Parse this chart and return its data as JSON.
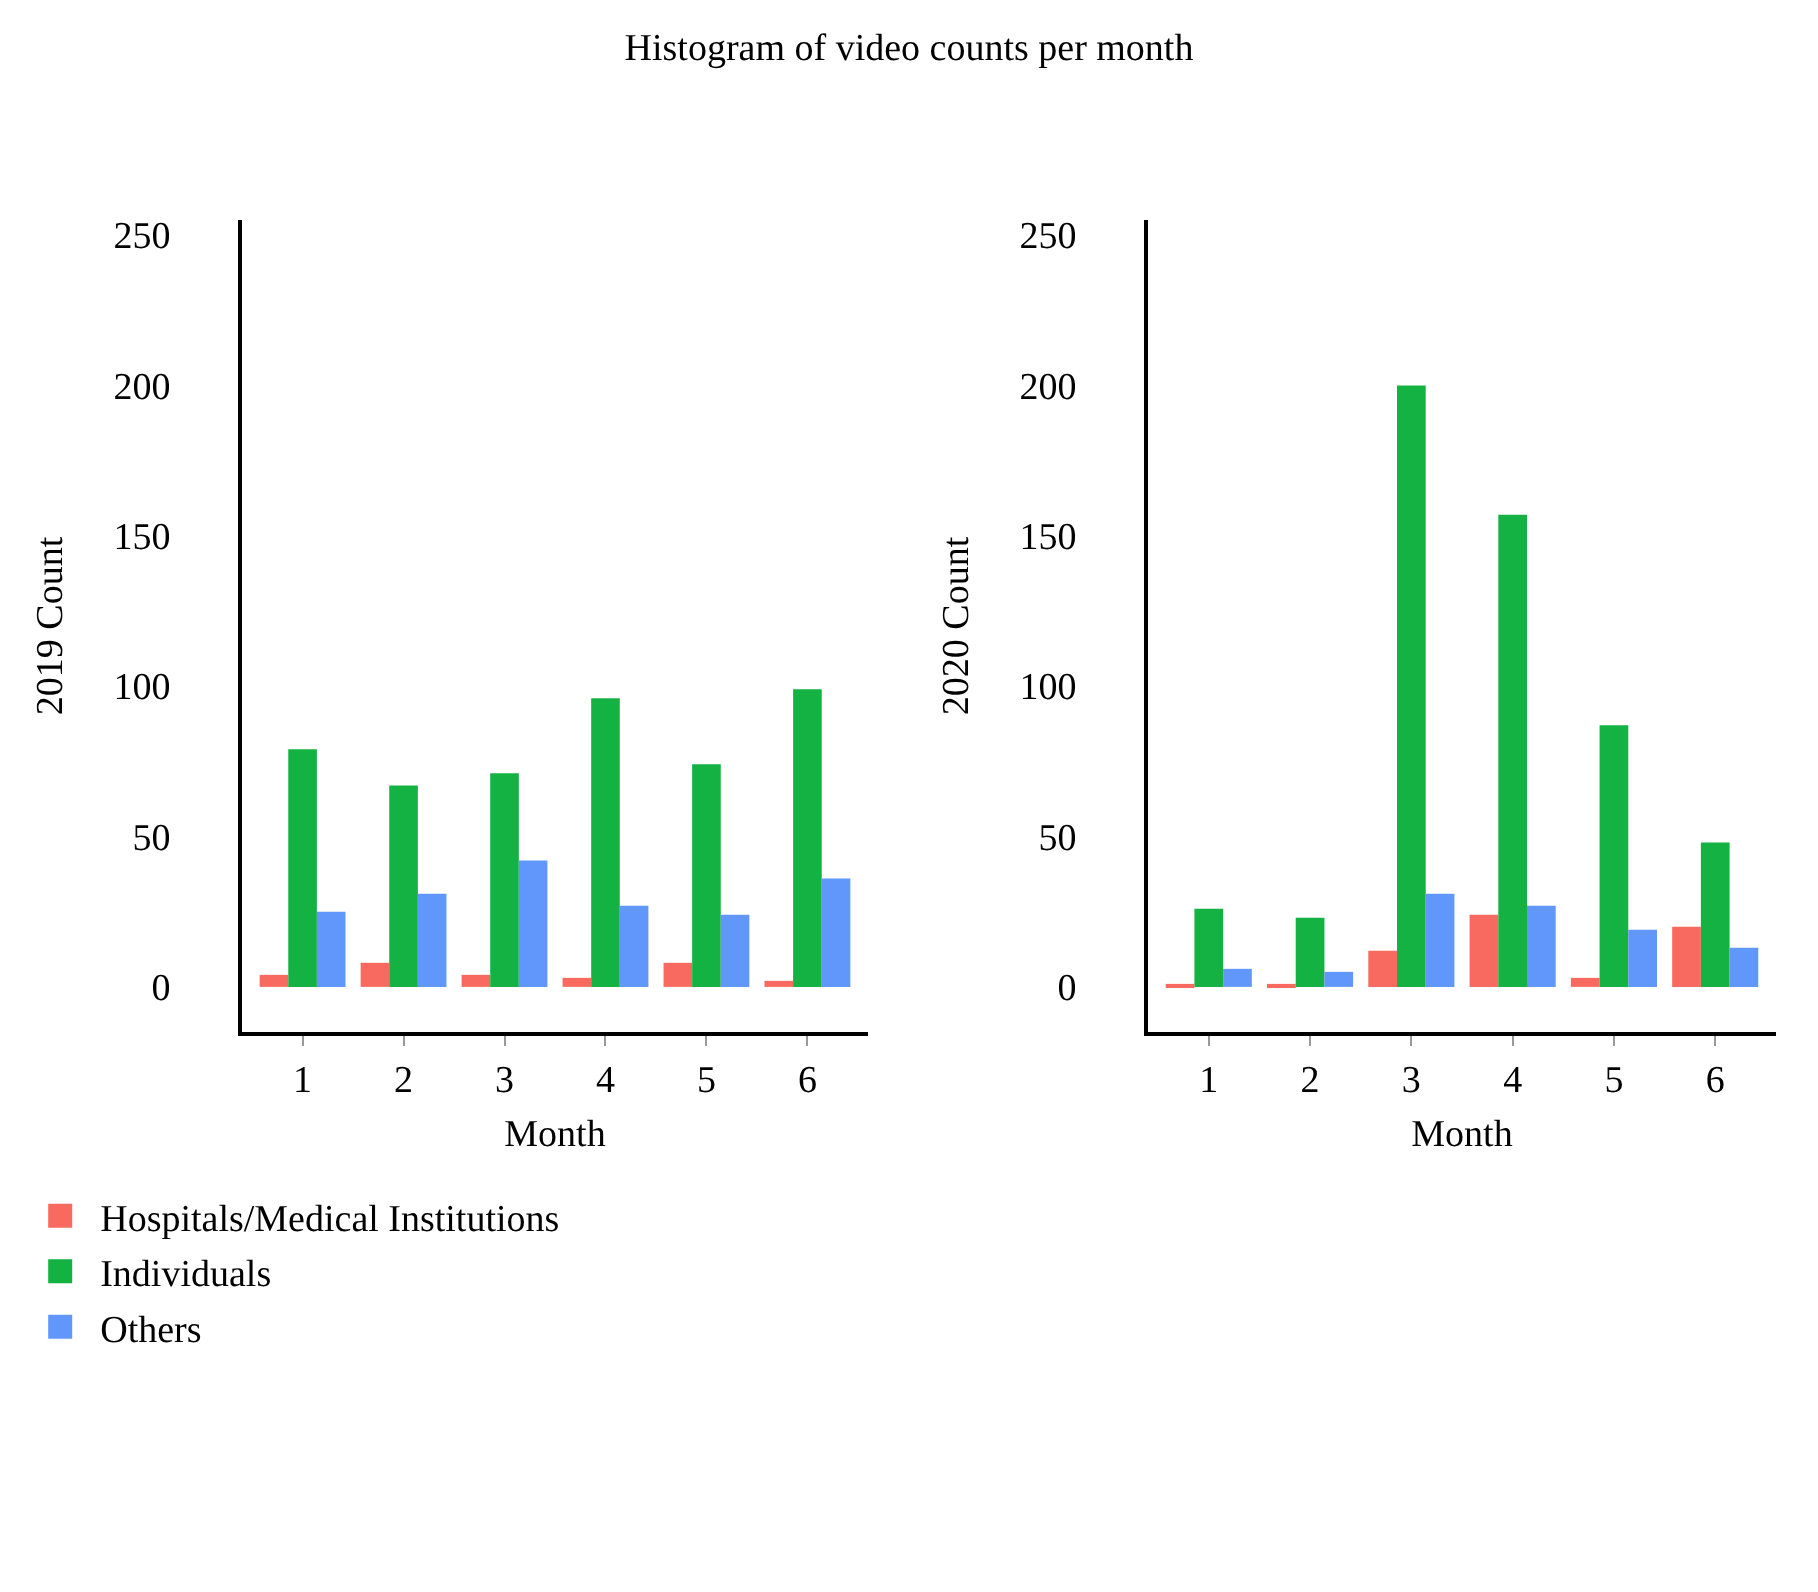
{
  "chart_data": [
    {
      "type": "bar",
      "title": "Histogram of video counts per month",
      "xlabel": "Month",
      "ylabel": "2019 Count",
      "categories": [
        "1",
        "2",
        "3",
        "4",
        "5",
        "6"
      ],
      "ylim": [
        -15,
        255
      ],
      "yticks": [
        0,
        50,
        100,
        150,
        200,
        250
      ],
      "grid": false,
      "legend": "bottom left",
      "series": [
        {
          "name": "Hospitals/Medical Institutions",
          "color": "#f8695f",
          "values": [
            4,
            8,
            4,
            3,
            8,
            2
          ]
        },
        {
          "name": "Individuals",
          "color": "#14b143",
          "values": [
            79,
            67,
            71,
            96,
            74,
            99
          ]
        },
        {
          "name": "Others",
          "color": "#6196fb",
          "values": [
            25,
            31,
            42,
            27,
            24,
            36
          ]
        }
      ]
    },
    {
      "type": "bar",
      "xlabel": "Month",
      "ylabel": "2020 Count",
      "categories": [
        "1",
        "2",
        "3",
        "4",
        "5",
        "6"
      ],
      "ylim": [
        -15,
        255
      ],
      "yticks": [
        0,
        50,
        100,
        150,
        200,
        250
      ],
      "grid": false,
      "legend": false,
      "series": [
        {
          "color": "#f8695f",
          "values": [
            1,
            1,
            12,
            24,
            3,
            20
          ]
        },
        {
          "color": "#14b143",
          "values": [
            26,
            23,
            200,
            157,
            87,
            48
          ]
        },
        {
          "color": "#6196fb",
          "values": [
            6,
            5,
            31,
            27,
            19,
            13
          ]
        }
      ]
    }
  ]
}
